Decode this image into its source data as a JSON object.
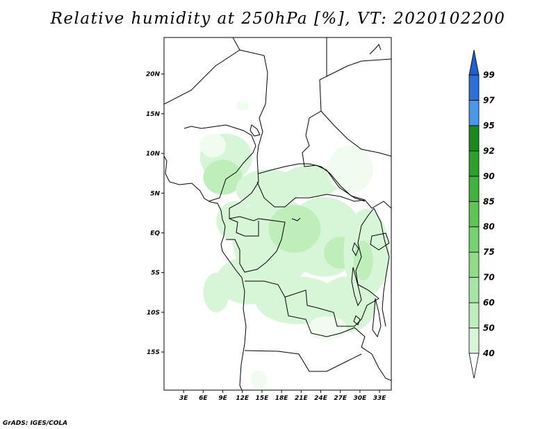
{
  "title": "Relative humidity at 250hPa [%], VT: 2020102200",
  "credit": "GrADS: IGES/COLA",
  "map": {
    "lon_range": [
      0,
      34.8
    ],
    "lat_range": [
      -19.8,
      24.6
    ],
    "lat_ticks": [
      {
        "value": 20,
        "label": "20N"
      },
      {
        "value": 15,
        "label": "15N"
      },
      {
        "value": 10,
        "label": "10N"
      },
      {
        "value": 5,
        "label": "5N"
      },
      {
        "value": 0,
        "label": "EQ"
      },
      {
        "value": -5,
        "label": "5S"
      },
      {
        "value": -10,
        "label": "10S"
      },
      {
        "value": -15,
        "label": "15S"
      }
    ],
    "lon_ticks": [
      {
        "value": 3,
        "label": "3E"
      },
      {
        "value": 6,
        "label": "6E"
      },
      {
        "value": 9,
        "label": "9E"
      },
      {
        "value": 12,
        "label": "12E"
      },
      {
        "value": 15,
        "label": "15E"
      },
      {
        "value": 18,
        "label": "18E"
      },
      {
        "value": 21,
        "label": "21E"
      },
      {
        "value": 24,
        "label": "24E"
      },
      {
        "value": 27,
        "label": "27E"
      },
      {
        "value": 30,
        "label": "30E"
      },
      {
        "value": 33,
        "label": "33E"
      }
    ],
    "humidity_blobs": [
      {
        "lon": 9.5,
        "lat": 9.5,
        "rlon": 4.0,
        "rlat": 3.0,
        "level": 50
      },
      {
        "lon": 7.5,
        "lat": 11.0,
        "rlon": 2.0,
        "rlat": 1.5,
        "level": 40
      },
      {
        "lon": 9.0,
        "lat": 7.0,
        "rlon": 3.0,
        "rlat": 2.2,
        "level": 60
      },
      {
        "lon": 16.0,
        "lat": 5.5,
        "rlon": 5.0,
        "rlat": 2.5,
        "level": 50
      },
      {
        "lon": 22.5,
        "lat": 6.5,
        "rlon": 4.5,
        "rlat": 2.0,
        "level": 50
      },
      {
        "lon": 28.5,
        "lat": 8.0,
        "rlon": 3.5,
        "rlat": 3.0,
        "level": 40
      },
      {
        "lon": 11.0,
        "lat": 1.5,
        "rlon": 3.0,
        "rlat": 2.5,
        "level": 50
      },
      {
        "lon": 17.0,
        "lat": -1.0,
        "rlon": 6.5,
        "rlat": 5.5,
        "level": 50
      },
      {
        "lon": 24.5,
        "lat": -0.5,
        "rlon": 6.0,
        "rlat": 5.0,
        "level": 50
      },
      {
        "lon": 20.0,
        "lat": 0.5,
        "rlon": 4.0,
        "rlat": 3.0,
        "level": 60
      },
      {
        "lon": 27.0,
        "lat": -2.5,
        "rlon": 2.5,
        "rlat": 2.0,
        "level": 60
      },
      {
        "lon": 31.0,
        "lat": -2.5,
        "rlon": 3.5,
        "rlat": 5.5,
        "level": 50
      },
      {
        "lon": 30.5,
        "lat": -3.5,
        "rlon": 1.5,
        "rlat": 2.5,
        "level": 60
      },
      {
        "lon": 13.0,
        "lat": -6.0,
        "rlon": 5.0,
        "rlat": 3.0,
        "level": 50
      },
      {
        "lon": 8.0,
        "lat": -7.5,
        "rlon": 2.0,
        "rlat": 2.5,
        "level": 50
      },
      {
        "lon": 20.5,
        "lat": -8.5,
        "rlon": 6.5,
        "rlat": 3.0,
        "level": 50
      },
      {
        "lon": 28.0,
        "lat": -9.0,
        "rlon": 4.5,
        "rlat": 3.5,
        "level": 50
      },
      {
        "lon": 25.0,
        "lat": -12.0,
        "rlon": 3.0,
        "rlat": 1.5,
        "level": 40
      },
      {
        "lon": 12.0,
        "lat": 16.0,
        "rlon": 1.0,
        "rlat": 0.6,
        "level": 40
      },
      {
        "lon": 14.5,
        "lat": -18.5,
        "rlon": 1.2,
        "rlat": 1.2,
        "level": 40
      }
    ]
  },
  "colorbar": {
    "levels": [
      {
        "label": "40",
        "color": "#f0fcf0"
      },
      {
        "label": "50",
        "color": "#d7f5d7"
      },
      {
        "label": "60",
        "color": "#bfeebb"
      },
      {
        "label": "70",
        "color": "#a6e5a3"
      },
      {
        "label": "75",
        "color": "#8fde87"
      },
      {
        "label": "80",
        "color": "#73d56b"
      },
      {
        "label": "85",
        "color": "#5cc653"
      },
      {
        "label": "90",
        "color": "#3fb43b"
      },
      {
        "label": "92",
        "color": "#2aa12a"
      },
      {
        "label": "95",
        "color": "#1a8a1a"
      },
      {
        "label": "97",
        "color": "#4a98e8"
      },
      {
        "label": "99",
        "color": "#2a70d8"
      }
    ],
    "top_color": "#1f5fcf",
    "bottom_color": "#ffffff"
  }
}
